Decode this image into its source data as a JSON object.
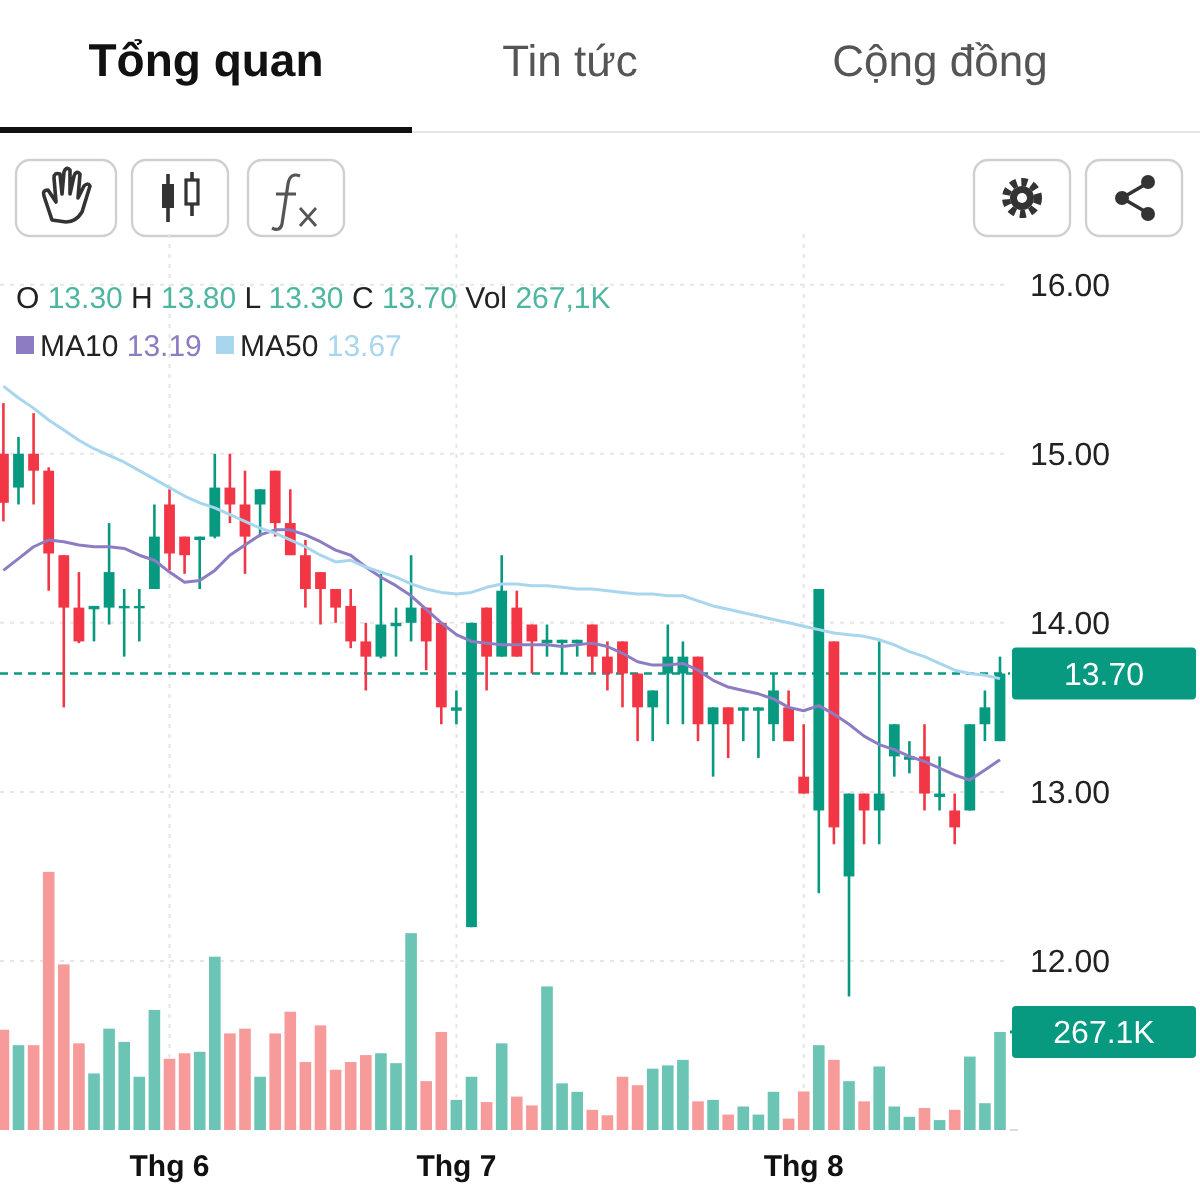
{
  "chart_data": {
    "type": "candlestick",
    "annotations": [
      "Tổng quan",
      "Tin tức",
      "Cộng đồng",
      "O 13.30 H 13.80 L 13.30 C 13.70 Vol 267,1K",
      "13.19",
      "13.67"
    ],
    "categories": [
      null,
      null,
      null,
      null,
      null,
      null,
      null,
      null,
      null,
      null,
      null,
      "Thg 6",
      null,
      null,
      null,
      null,
      null,
      null,
      null,
      null,
      null,
      null,
      null,
      null,
      null,
      null,
      null,
      null,
      null,
      null,
      "Thg 7",
      null,
      null,
      null,
      null,
      null,
      null,
      null,
      null,
      null,
      null,
      null,
      null,
      null,
      null,
      null,
      null,
      null,
      null,
      null,
      null,
      null,
      null,
      "Thg 8",
      null,
      null,
      null,
      null,
      null,
      null,
      null,
      null,
      null,
      null,
      null,
      null,
      null
    ],
    "ohlc": [
      [
        15.0,
        15.3,
        14.6,
        14.71
      ],
      [
        14.8,
        15.1,
        14.7,
        15.0
      ],
      [
        15.0,
        15.24,
        14.7,
        14.9
      ],
      [
        14.9,
        14.92,
        14.19,
        14.41
      ],
      [
        14.4,
        14.4,
        13.5,
        14.09
      ],
      [
        14.09,
        14.3,
        13.88,
        13.89
      ],
      [
        14.08,
        14.1,
        13.89,
        14.1
      ],
      [
        14.09,
        14.59,
        13.99,
        14.3
      ],
      [
        14.09,
        14.2,
        13.8,
        14.1
      ],
      [
        14.09,
        14.2,
        13.89,
        14.1
      ],
      [
        14.2,
        14.7,
        14.2,
        14.51
      ],
      [
        14.7,
        14.79,
        14.31,
        14.41
      ],
      [
        14.51,
        14.51,
        14.29,
        14.4
      ],
      [
        14.49,
        14.51,
        14.2,
        14.51
      ],
      [
        14.51,
        15.0,
        14.5,
        14.8
      ],
      [
        14.8,
        15.0,
        14.59,
        14.7
      ],
      [
        14.7,
        14.9,
        14.29,
        14.51
      ],
      [
        14.7,
        14.79,
        14.51,
        14.79
      ],
      [
        14.9,
        14.9,
        14.51,
        14.59
      ],
      [
        14.59,
        14.79,
        14.4,
        14.4
      ],
      [
        14.4,
        14.49,
        14.09,
        14.2
      ],
      [
        14.3,
        14.3,
        13.99,
        14.2
      ],
      [
        14.2,
        14.2,
        14.0,
        14.09
      ],
      [
        14.1,
        14.2,
        13.85,
        13.89
      ],
      [
        13.89,
        14.0,
        13.6,
        13.8
      ],
      [
        13.8,
        14.29,
        13.79,
        13.99
      ],
      [
        13.98,
        14.09,
        13.8,
        14.0
      ],
      [
        14.0,
        14.4,
        13.89,
        14.09
      ],
      [
        14.09,
        14.09,
        13.72,
        13.89
      ],
      [
        14.0,
        14.0,
        13.4,
        13.5
      ],
      [
        13.48,
        13.6,
        13.4,
        13.5
      ],
      [
        12.2,
        14.0,
        12.2,
        14.0
      ],
      [
        14.09,
        14.09,
        13.6,
        13.8
      ],
      [
        13.8,
        14.4,
        13.8,
        14.19
      ],
      [
        14.09,
        14.19,
        13.8,
        13.8
      ],
      [
        13.99,
        13.99,
        13.7,
        13.89
      ],
      [
        13.88,
        13.99,
        13.8,
        13.9
      ],
      [
        13.88,
        13.9,
        13.7,
        13.9
      ],
      [
        13.88,
        13.9,
        13.8,
        13.9
      ],
      [
        13.99,
        13.99,
        13.7,
        13.8
      ],
      [
        13.8,
        13.89,
        13.6,
        13.7
      ],
      [
        13.89,
        13.89,
        13.5,
        13.7
      ],
      [
        13.7,
        13.7,
        13.3,
        13.5
      ],
      [
        13.5,
        13.6,
        13.3,
        13.6
      ],
      [
        13.7,
        13.99,
        13.4,
        13.8
      ],
      [
        13.7,
        13.89,
        13.4,
        13.8
      ],
      [
        13.8,
        13.8,
        13.3,
        13.4
      ],
      [
        13.4,
        13.5,
        13.09,
        13.5
      ],
      [
        13.5,
        13.5,
        13.2,
        13.4
      ],
      [
        13.48,
        13.5,
        13.3,
        13.5
      ],
      [
        13.48,
        13.5,
        13.2,
        13.5
      ],
      [
        13.4,
        13.7,
        13.3,
        13.6
      ],
      [
        13.5,
        13.6,
        13.3,
        13.3
      ],
      [
        13.09,
        13.4,
        12.99,
        12.99
      ],
      [
        12.89,
        14.2,
        12.4,
        14.2
      ],
      [
        13.89,
        13.89,
        12.69,
        12.79
      ],
      [
        12.5,
        12.99,
        11.79,
        12.99
      ],
      [
        12.99,
        12.99,
        12.69,
        12.89
      ],
      [
        12.89,
        13.89,
        12.69,
        12.99
      ],
      [
        13.21,
        13.4,
        13.09,
        13.4
      ],
      [
        13.19,
        13.3,
        13.11,
        13.21
      ],
      [
        13.21,
        13.4,
        12.89,
        12.99
      ],
      [
        12.97,
        13.21,
        12.89,
        12.99
      ],
      [
        12.89,
        12.99,
        12.69,
        12.79
      ],
      [
        12.89,
        13.4,
        12.89,
        13.4
      ],
      [
        13.4,
        13.6,
        13.3,
        13.5
      ],
      [
        13.3,
        13.8,
        13.3,
        13.7
      ]
    ],
    "colors": [
      "#f23645",
      "#089981",
      "#f23645",
      "#f23645",
      "#f23645",
      "#f23645",
      "#089981",
      "#089981",
      "#089981",
      "#089981",
      "#089981",
      "#f23645",
      "#f23645",
      "#089981",
      "#089981",
      "#f23645",
      "#f23645",
      "#089981",
      "#f23645",
      "#f23645",
      "#f23645",
      "#f23645",
      "#f23645",
      "#f23645",
      "#f23645",
      "#089981",
      "#089981",
      "#089981",
      "#f23645",
      "#f23645",
      "#089981",
      "#089981",
      "#f23645",
      "#089981",
      "#f23645",
      "#f23645",
      "#089981",
      "#089981",
      "#089981",
      "#f23645",
      "#f23645",
      "#f23645",
      "#f23645",
      "#089981",
      "#089981",
      "#089981",
      "#f23645",
      "#089981",
      "#f23645",
      "#089981",
      "#089981",
      "#089981",
      "#f23645",
      "#f23645",
      "#089981",
      "#f23645",
      "#089981",
      "#f23645",
      "#089981",
      "#089981",
      "#089981",
      "#f23645",
      "#089981",
      "#f23645",
      "#089981",
      "#089981",
      "#089981"
    ],
    "series": [
      {
        "type": "line",
        "name": "MA10",
        "color": "#8e7cc3",
        "values": [
          14.31,
          14.38,
          14.45,
          14.49,
          14.48,
          14.46,
          14.45,
          14.45,
          14.44,
          14.4,
          14.37,
          14.3,
          14.24,
          14.25,
          14.31,
          14.4,
          14.46,
          14.52,
          14.55,
          14.55,
          14.52,
          14.48,
          14.43,
          14.4,
          14.33,
          14.27,
          14.22,
          14.16,
          14.08,
          14.0,
          13.93,
          13.89,
          13.88,
          13.87,
          13.87,
          13.87,
          13.87,
          13.86,
          13.87,
          13.88,
          13.86,
          13.82,
          13.77,
          13.75,
          13.75,
          13.76,
          13.72,
          13.66,
          13.62,
          13.6,
          13.58,
          13.55,
          13.5,
          13.48,
          13.51,
          13.46,
          13.4,
          13.33,
          13.28,
          13.25,
          13.21,
          13.18,
          13.14,
          13.1,
          13.07,
          13.13,
          13.19
        ]
      },
      {
        "type": "line",
        "name": "MA50",
        "color": "#a9d6ef",
        "values": [
          15.4,
          15.33,
          15.27,
          15.2,
          15.14,
          15.08,
          15.03,
          14.99,
          14.95,
          14.9,
          14.85,
          14.8,
          14.75,
          14.71,
          14.68,
          14.64,
          14.6,
          14.56,
          14.53,
          14.49,
          14.45,
          14.4,
          14.36,
          14.37,
          14.33,
          14.3,
          14.27,
          14.23,
          14.2,
          14.18,
          14.17,
          14.18,
          14.21,
          14.23,
          14.23,
          14.22,
          14.22,
          14.21,
          14.2,
          14.2,
          14.19,
          14.18,
          14.17,
          14.17,
          14.16,
          14.16,
          14.13,
          14.1,
          14.08,
          14.06,
          14.04,
          14.02,
          14.0,
          13.98,
          13.96,
          13.94,
          13.93,
          13.92,
          13.9,
          13.87,
          13.83,
          13.8,
          13.76,
          13.72,
          13.7,
          13.69,
          13.67
        ]
      },
      {
        "type": "bar",
        "axis": "y2",
        "values": [
          273,
          231,
          231,
          703,
          451,
          236,
          154,
          276,
          240,
          145,
          327,
          194,
          209,
          213,
          472,
          263,
          276,
          145,
          263,
          322,
          185,
          285,
          164,
          185,
          204,
          209,
          182,
          536,
          133,
          267,
          82,
          145,
          76,
          236,
          91,
          67,
          391,
          127,
          104,
          55,
          40,
          145,
          122,
          167,
          176,
          191,
          78,
          82,
          42,
          64,
          42,
          104,
          31,
          105,
          231,
          191,
          133,
          78,
          173,
          64,
          36,
          60,
          27,
          55,
          200,
          73,
          267.1
        ],
        "colors": [
          "#f79a9a",
          "#6cc4b4",
          "#f79a9a",
          "#f79a9a",
          "#f79a9a",
          "#f79a9a",
          "#6cc4b4",
          "#6cc4b4",
          "#6cc4b4",
          "#6cc4b4",
          "#6cc4b4",
          "#f79a9a",
          "#f79a9a",
          "#6cc4b4",
          "#6cc4b4",
          "#f79a9a",
          "#f79a9a",
          "#6cc4b4",
          "#f79a9a",
          "#f79a9a",
          "#f79a9a",
          "#f79a9a",
          "#f79a9a",
          "#f79a9a",
          "#f79a9a",
          "#6cc4b4",
          "#6cc4b4",
          "#6cc4b4",
          "#f79a9a",
          "#f79a9a",
          "#6cc4b4",
          "#6cc4b4",
          "#f79a9a",
          "#6cc4b4",
          "#f79a9a",
          "#f79a9a",
          "#6cc4b4",
          "#6cc4b4",
          "#6cc4b4",
          "#f79a9a",
          "#f79a9a",
          "#f79a9a",
          "#f79a9a",
          "#6cc4b4",
          "#6cc4b4",
          "#6cc4b4",
          "#f79a9a",
          "#6cc4b4",
          "#f79a9a",
          "#6cc4b4",
          "#6cc4b4",
          "#6cc4b4",
          "#f79a9a",
          "#f79a9a",
          "#6cc4b4",
          "#f79a9a",
          "#6cc4b4",
          "#f79a9a",
          "#6cc4b4",
          "#6cc4b4",
          "#6cc4b4",
          "#f79a9a",
          "#6cc4b4",
          "#f79a9a",
          "#6cc4b4",
          "#6cc4b4",
          "#6cc4b4"
        ]
      }
    ],
    "y2ticks": [
      {
        "value": 0,
        "label": null
      },
      {
        "value": 267.1,
        "label": "267.1K"
      }
    ],
    "ylim": [
      11.0,
      16.3
    ],
    "yticks": [
      {
        "value": 12,
        "label": "12.00"
      },
      {
        "value": 13,
        "label": "13.00"
      },
      {
        "value": 14,
        "label": "14.00"
      },
      {
        "value": 15,
        "label": "15.00"
      },
      {
        "value": 16,
        "label": "16.00"
      }
    ],
    "y2lim": [
      0,
      2440
    ],
    "ref_lines": [
      {
        "axis": "y",
        "value": 13.7,
        "label": "13.70",
        "color": "#089981",
        "line_style": "dashed"
      }
    ],
    "grid": true,
    "legend": "top left"
  }
}
